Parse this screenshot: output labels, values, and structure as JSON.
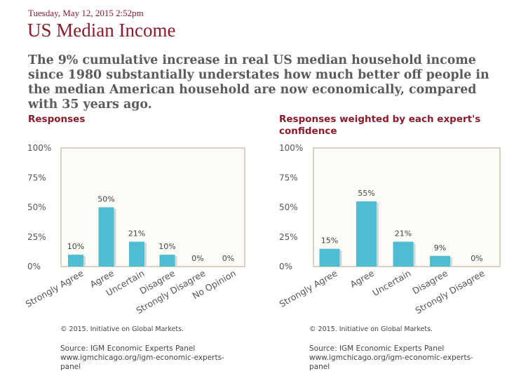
{
  "header": {
    "timestamp": "Tuesday, May 12, 2015 2:52pm",
    "title": "US Median Income",
    "statement": "The 9% cumulative increase in real US median household income since 1980 substantially understates how much better off people in the median American household are now economically, compared with 35 years ago."
  },
  "colors": {
    "bar": "#4fbdd1",
    "bar_shadow": "#d6d6d6",
    "title": "#8b1a2b",
    "plot_bg": "#fcfbf6",
    "plot_border": "#d8d3c4"
  },
  "chart_data": [
    {
      "type": "bar",
      "title": "Responses",
      "categories": [
        "Strongly Agree",
        "Agree",
        "Uncertain",
        "Disagree",
        "Strongly Disagree",
        "No Opinion"
      ],
      "values": [
        10,
        50,
        21,
        10,
        0,
        0
      ],
      "value_labels": [
        "10%",
        "50%",
        "21%",
        "10%",
        "0%",
        "0%"
      ],
      "ylim": [
        0,
        100
      ],
      "yticks": [
        "0%",
        "25%",
        "50%",
        "75%",
        "100%"
      ],
      "xlabel": "",
      "ylabel": ""
    },
    {
      "type": "bar",
      "title": "Responses weighted by each expert's confidence",
      "categories": [
        "Strongly Agree",
        "Agree",
        "Uncertain",
        "Disagree",
        "Strongly Disagree"
      ],
      "values": [
        15,
        55,
        21,
        9,
        0
      ],
      "value_labels": [
        "15%",
        "55%",
        "21%",
        "9%",
        "0%"
      ],
      "ylim": [
        0,
        100
      ],
      "yticks": [
        "0%",
        "25%",
        "50%",
        "75%",
        "100%"
      ],
      "xlabel": "",
      "ylabel": ""
    }
  ],
  "footer": {
    "copyright": "© 2015. Initiative on Global Markets.",
    "source_line1": "Source: IGM Economic Experts Panel",
    "source_line2": "www.igmchicago.org/igm-economic-experts-",
    "source_line3": "panel"
  }
}
